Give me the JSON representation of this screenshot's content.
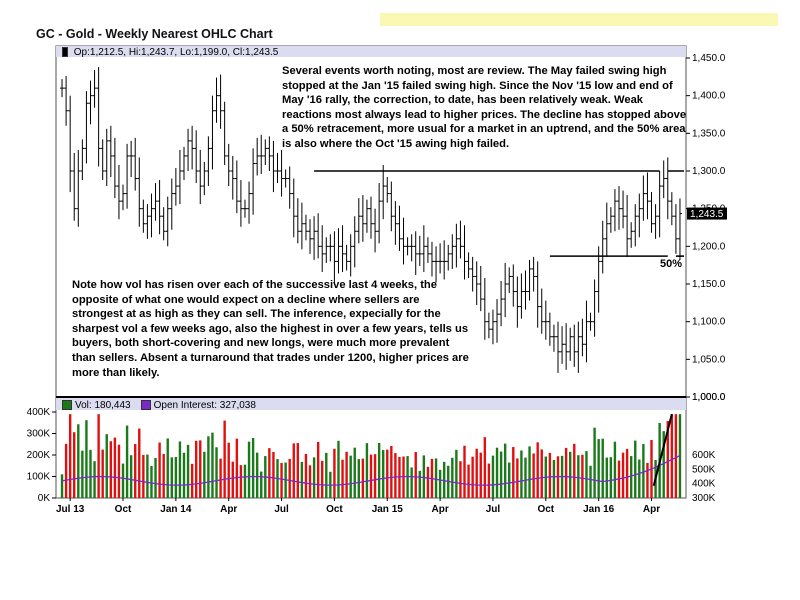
{
  "title": "GC - Gold - Weekly Nearest OHLC Chart",
  "header": {
    "ohlc": "Op:1,212.5, Hi:1,243.7, Lo:1,199.0, Cl:1,243.5",
    "vol": "Vol: 180,443",
    "oi": "Open Interest: 327,038"
  },
  "notes": {
    "top": "Several events worth noting, most are review.  The May failed swing high stopped at the Jan '15 failed swing high.  Since the Nov '15 low and end of May '16 rally, the correction, to date, has been relatively weak.  Weak reactions most always lead to higher prices.  The decline has stopped above a 50% retracement, more usual for a market in an uptrend, and the 50% area is also where the Oct '15 awing high failed.",
    "left": "Note how vol has risen over each of the successive last 4 weeks, the opposite of what one would expect on a decline where sellers are strongest at as high as they can sell.  The inference, expecially for the sharpest vol a few weeks ago, also the highest in over a few years, tells us buyers, both short-covering and new longs, were much more prevalent than sellers.  Absent a turnaround that trades under 1200, higher prices are more than likely.",
    "pct": "50%"
  },
  "colors": {
    "up": "#1a7a1a",
    "down": "#e01010",
    "oi": "#7a28c8",
    "header_bg": "#dcdcf0",
    "highlight": "#fbf8b4"
  },
  "chart_data": {
    "type": "ohlc",
    "price_axis": {
      "ylim": [
        1000,
        1450
      ],
      "ticks": [
        1000,
        1050,
        1100,
        1150,
        1200,
        1250,
        1300,
        1350,
        1400,
        1450
      ],
      "tick_labels": [
        "1,000.0",
        "1,050.0",
        "1,100.0",
        "1,150.0",
        "1,200.0",
        "1,250.0",
        "1,300.0",
        "1,350.0",
        "1,400.0",
        "1,450.0"
      ],
      "last_label": "1,243.5"
    },
    "volume_axis": {
      "ylim": [
        0,
        400000
      ],
      "ticks": [
        0,
        100000,
        200000,
        300000,
        400000
      ],
      "tick_labels": [
        "0K",
        "100K",
        "200K",
        "300K",
        "400K"
      ]
    },
    "oi_axis": {
      "ylim": [
        300000,
        1000000
      ],
      "ticks": [
        300000,
        400000,
        500000,
        600000
      ],
      "tick_labels": [
        "300K",
        "400K",
        "500K",
        "600K"
      ],
      "top_label": "1,000.0"
    },
    "x_labels": [
      {
        "label": "Jul 13",
        "week": 2
      },
      {
        "label": "Oct",
        "week": 15
      },
      {
        "label": "Jan 14",
        "week": 28
      },
      {
        "label": "Apr",
        "week": 41
      },
      {
        "label": "Jul",
        "week": 54
      },
      {
        "label": "Oct",
        "week": 67
      },
      {
        "label": "Jan 15",
        "week": 80
      },
      {
        "label": "Apr",
        "week": 93
      },
      {
        "label": "Jul",
        "week": 106
      },
      {
        "label": "Oct",
        "week": 119
      },
      {
        "label": "Jan 16",
        "week": 132
      },
      {
        "label": "Apr",
        "week": 145
      }
    ],
    "closes": [
      1410,
      1380,
      1300,
      1250,
      1300,
      1330,
      1390,
      1400,
      1410,
      1330,
      1300,
      1340,
      1320,
      1280,
      1260,
      1270,
      1320,
      1320,
      1290,
      1250,
      1230,
      1240,
      1250,
      1260,
      1240,
      1220,
      1250,
      1270,
      1280,
      1300,
      1320,
      1340,
      1330,
      1300,
      1280,
      1300,
      1330,
      1380,
      1400,
      1380,
      1320,
      1300,
      1290,
      1260,
      1250,
      1250,
      1270,
      1310,
      1320,
      1320,
      1330,
      1320,
      1300,
      1300,
      1290,
      1290,
      1270,
      1240,
      1220,
      1230,
      1220,
      1210,
      1220,
      1200,
      1190,
      1200,
      1200,
      1180,
      1200,
      1190,
      1180,
      1200,
      1220,
      1240,
      1230,
      1250,
      1230,
      1220,
      1260,
      1280,
      1270,
      1240,
      1230,
      1210,
      1200,
      1200,
      1200,
      1190,
      1190,
      1200,
      1190,
      1180,
      1180,
      1180,
      1180,
      1190,
      1200,
      1210,
      1200,
      1180,
      1170,
      1160,
      1150,
      1130,
      1100,
      1090,
      1100,
      1110,
      1130,
      1150,
      1160,
      1140,
      1120,
      1140,
      1140,
      1170,
      1160,
      1120,
      1100,
      1100,
      1080,
      1080,
      1060,
      1070,
      1060,
      1080,
      1060,
      1080,
      1070,
      1100,
      1100,
      1140,
      1180,
      1210,
      1230,
      1240,
      1260,
      1250,
      1240,
      1210,
      1220,
      1240,
      1250,
      1270,
      1260,
      1230,
      1240,
      1280,
      1290,
      1260,
      1240,
      1210,
      1243.5
    ],
    "resistance_line": {
      "y": 1300,
      "x_range": [
        62,
        150
      ]
    },
    "support_line": {
      "y": 1187,
      "x_range": [
        120,
        150
      ]
    },
    "pct_line_label": "50%"
  }
}
